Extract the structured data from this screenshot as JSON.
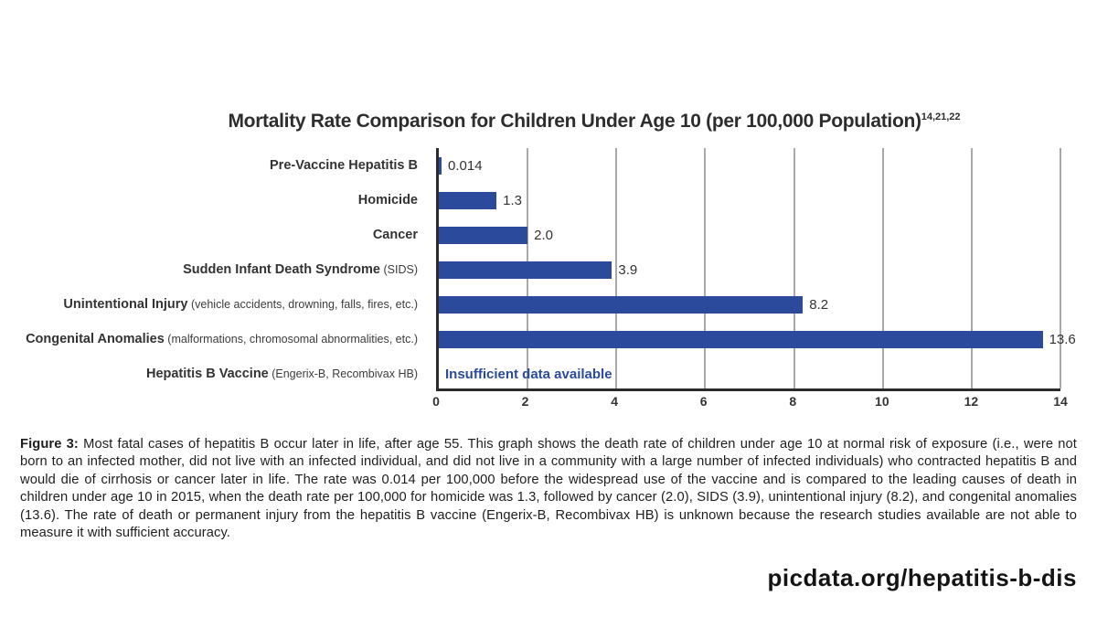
{
  "chart_data": {
    "type": "bar",
    "orientation": "horizontal",
    "title": "Mortality Rate Comparison for Children Under Age 10 (per 100,000 Population)",
    "title_superscript": "14,21,22",
    "categories": [
      {
        "label": "Pre-Vaccine Hepatitis B",
        "sublabel": "",
        "value": 0.014,
        "value_label": "0.014"
      },
      {
        "label": "Homicide",
        "sublabel": "",
        "value": 1.3,
        "value_label": "1.3"
      },
      {
        "label": "Cancer",
        "sublabel": "",
        "value": 2.0,
        "value_label": "2.0"
      },
      {
        "label": "Sudden Infant Death Syndrome",
        "sublabel": "(SIDS)",
        "value": 3.9,
        "value_label": "3.9"
      },
      {
        "label": "Unintentional Injury",
        "sublabel": "(vehicle accidents, drowning, falls, fires, etc.)",
        "value": 8.2,
        "value_label": "8.2"
      },
      {
        "label": "Congenital Anomalies",
        "sublabel": "(malformations, chromosomal abnormalities, etc.)",
        "value": 13.6,
        "value_label": "13.6"
      },
      {
        "label": "Hepatitis B Vaccine",
        "sublabel": "(Engerix-B, Recombivax HB)",
        "value": null,
        "value_label": "Insufficient data available"
      }
    ],
    "xlim": [
      0,
      14
    ],
    "x_ticks": [
      "0",
      "2",
      "4",
      "6",
      "8",
      "10",
      "12",
      "14"
    ],
    "grid": true,
    "legend": "none",
    "bar_color": "#2b4a9b",
    "no_data_text_color": "#2b4a9b"
  },
  "caption": {
    "prefix": "Figure 3:",
    "text": " Most fatal cases of hepatitis B occur later in life, after age 55. This graph shows the death rate of children under age 10 at normal risk of exposure (i.e., were not born to an infected mother, did not live with an infected individual, and did not live in a community with a large number of infected individuals) who contracted hepatitis B and would die of cirrhosis or cancer later in life. The rate was 0.014 per 100,000 before the widespread use of the vaccine and is compared to the leading causes of death in children under age 10 in 2015, when the death rate per 100,000 for homicide was 1.3, followed by cancer (2.0), SIDS (3.9), unintentional injury (8.2), and congenital anomalies (13.6). The rate of death or permanent injury from the hepatitis B vaccine (Engerix-B, Recombivax HB) is unknown because the research studies available are not able to measure it with sufficient accuracy."
  },
  "footer": {
    "site_label": "picdata.org/hepatitis-b-dis"
  }
}
